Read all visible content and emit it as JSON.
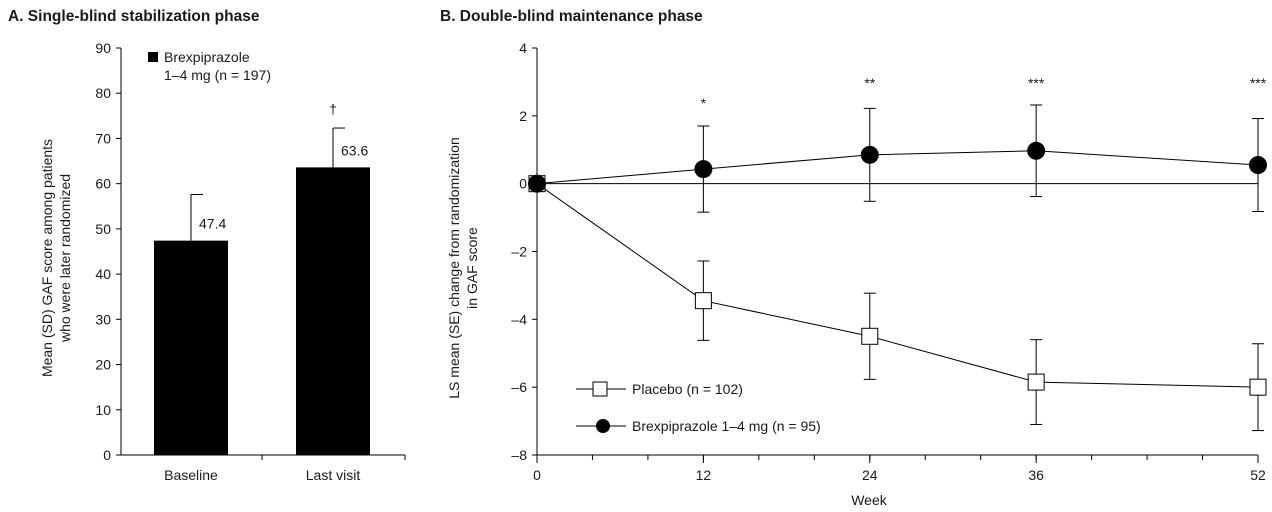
{
  "chart_data": [
    {
      "type": "bar",
      "title": "A. Single-blind stabilization phase",
      "xlabel": "",
      "ylabel": "Mean (SD) GAF score among patients who were later randomized",
      "ylabel_lines": [
        "Mean (SD) GAF score among patients",
        "who were later randomized"
      ],
      "ylim": [
        0,
        90
      ],
      "yticks": [
        0,
        10,
        20,
        30,
        40,
        50,
        60,
        70,
        80,
        90
      ],
      "categories": [
        "Baseline",
        "Last visit"
      ],
      "series": [
        {
          "name": "Brexpiprazole 1–4 mg (n = 197)",
          "legend_lines": [
            "Brexpiprazole",
            "1–4 mg (n = 197)"
          ],
          "values": [
            47.4,
            63.6
          ],
          "sd": [
            10.2,
            8.7
          ],
          "labels": [
            "47.4",
            "63.6"
          ],
          "color": "#000000"
        }
      ],
      "annotations": [
        "",
        "†"
      ],
      "legend_position": "top-left",
      "grid": false
    },
    {
      "type": "line",
      "title": "B. Double-blind maintenance phase",
      "xlabel": "Week",
      "ylabel": "LS mean (SE) change from randomization in GAF score",
      "ylabel_lines": [
        "LS mean (SE) change from randomization",
        "in GAF score"
      ],
      "xlim": [
        0,
        52
      ],
      "ylim": [
        -8,
        4
      ],
      "xticks": [
        0,
        12,
        24,
        36,
        52
      ],
      "yticks": [
        4,
        2,
        0,
        -2,
        -4,
        -6,
        -8
      ],
      "ytick_labels": [
        "4",
        "2",
        "0",
        "–2",
        "–4",
        "–6",
        "–8"
      ],
      "x": [
        0,
        12,
        24,
        36,
        52
      ],
      "series": [
        {
          "name": "Placebo (n = 102)",
          "marker": "open-square",
          "y": [
            0,
            -3.45,
            -4.5,
            -5.85,
            -6.0
          ],
          "se": [
            0,
            1.17,
            1.27,
            1.25,
            1.28
          ]
        },
        {
          "name": "Brexpiprazole 1–4 mg (n = 95)",
          "marker": "filled-circle",
          "y": [
            0,
            0.43,
            0.85,
            0.97,
            0.55
          ],
          "se": [
            0,
            1.27,
            1.37,
            1.35,
            1.37
          ]
        }
      ],
      "significance": [
        "",
        "*",
        "**",
        "***",
        "***"
      ],
      "legend_position": "bottom-left",
      "grid": false
    }
  ]
}
